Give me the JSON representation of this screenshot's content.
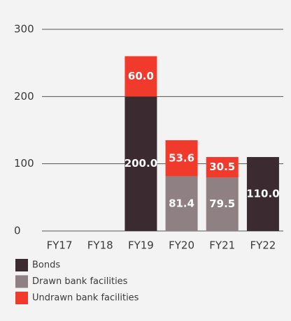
{
  "chart_data": {
    "type": "stacked_bar",
    "categories": [
      "FY17",
      "FY18",
      "FY19",
      "FY20",
      "FY21",
      "FY22"
    ],
    "series": [
      {
        "name": "Bonds",
        "color": "#3b2b30",
        "values": [
          null,
          null,
          200,
          null,
          null,
          110
        ],
        "value_labels": [
          null,
          null,
          "200.0",
          null,
          null,
          "110.0"
        ]
      },
      {
        "name": "Drawn bank facilities",
        "color": "#8f8083",
        "values": [
          null,
          null,
          null,
          81.4,
          79.5,
          null
        ],
        "value_labels": [
          null,
          null,
          null,
          "81.4",
          "79.5",
          null
        ]
      },
      {
        "name": "Undrawn bank facilities",
        "color": "#f03b2c",
        "values": [
          null,
          null,
          60,
          53.6,
          30.5,
          null
        ],
        "value_labels": [
          null,
          null,
          "60.0",
          "53.6",
          "30.5",
          null
        ]
      }
    ],
    "ylim": [
      0,
      300
    ],
    "yticks": [
      0,
      100,
      200,
      300
    ],
    "grid": true
  }
}
